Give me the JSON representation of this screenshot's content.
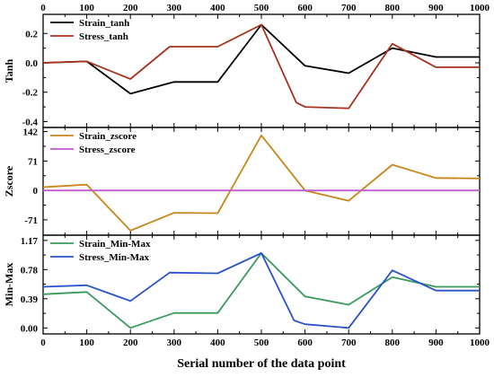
{
  "chart_data": [
    {
      "type": "line",
      "ylabel": "Tanh",
      "xlim": [
        0,
        1000
      ],
      "ylim": [
        -0.44,
        0.33
      ],
      "yticks": [
        -0.4,
        -0.2,
        0.0,
        0.2
      ],
      "ytick_labels": [
        "-0.4",
        "-0.2",
        "0.0",
        "0.2"
      ],
      "legend_position": "top-left",
      "series": [
        {
          "name": "Strain_tanh",
          "color": "#000000",
          "x": [
            0,
            100,
            200,
            300,
            400,
            500,
            600,
            700,
            800,
            900,
            1000
          ],
          "y": [
            0.0,
            0.01,
            -0.21,
            -0.13,
            -0.13,
            0.26,
            -0.02,
            -0.07,
            0.1,
            0.04,
            0.04
          ]
        },
        {
          "name": "Stress_tanh",
          "color": "#a8321e",
          "x": [
            0,
            100,
            200,
            290,
            400,
            500,
            580,
            600,
            700,
            800,
            900,
            1000
          ],
          "y": [
            0.0,
            0.01,
            -0.11,
            0.11,
            0.11,
            0.26,
            -0.27,
            -0.3,
            -0.31,
            0.13,
            -0.03,
            -0.03
          ]
        }
      ]
    },
    {
      "type": "line",
      "ylabel": "Zscore",
      "xlim": [
        0,
        1000
      ],
      "ylim": [
        -108,
        152
      ],
      "yticks": [
        -71,
        0,
        71,
        142
      ],
      "ytick_labels": [
        "-71",
        "0",
        "71",
        "142"
      ],
      "legend_position": "top-left",
      "series": [
        {
          "name": "Strain_zscore",
          "color": "#c8861a",
          "x": [
            0,
            100,
            200,
            300,
            400,
            500,
            600,
            700,
            800,
            900,
            1000
          ],
          "y": [
            8,
            14,
            -97,
            -54,
            -55,
            133,
            0,
            -25,
            62,
            30,
            29
          ]
        },
        {
          "name": "Stress_zscore",
          "color": "#c05cd0",
          "x": [
            0,
            1000
          ],
          "y": [
            0,
            0
          ]
        }
      ]
    },
    {
      "type": "line",
      "ylabel": "Min-Max",
      "xlabel": "Serial number of the data point",
      "xlim": [
        0,
        1000
      ],
      "ylim": [
        -0.08,
        1.24
      ],
      "yticks": [
        0.0,
        0.39,
        0.78,
        1.17
      ],
      "ytick_labels": [
        "0.00",
        "0.39",
        "0.78",
        "1.17"
      ],
      "legend_position": "top-left",
      "series": [
        {
          "name": "Strain_Min-Max",
          "color": "#3a9a5c",
          "x": [
            0,
            100,
            200,
            300,
            400,
            500,
            600,
            700,
            800,
            900,
            1000
          ],
          "y": [
            0.45,
            0.48,
            0.0,
            0.2,
            0.2,
            1.0,
            0.42,
            0.31,
            0.68,
            0.55,
            0.55
          ]
        },
        {
          "name": "Stress_Min-Max",
          "color": "#2a52c8",
          "x": [
            0,
            100,
            200,
            290,
            400,
            500,
            575,
            600,
            700,
            800,
            900,
            1000
          ],
          "y": [
            0.55,
            0.57,
            0.36,
            0.74,
            0.73,
            1.0,
            0.1,
            0.05,
            0.0,
            0.77,
            0.5,
            0.5
          ]
        }
      ]
    }
  ],
  "x_axis": {
    "ticks": [
      0,
      100,
      200,
      300,
      400,
      500,
      600,
      700,
      800,
      900,
      1000
    ],
    "tick_labels": [
      "0",
      "100",
      "200",
      "300",
      "400",
      "500",
      "600",
      "700",
      "800",
      "900",
      "1000"
    ]
  }
}
